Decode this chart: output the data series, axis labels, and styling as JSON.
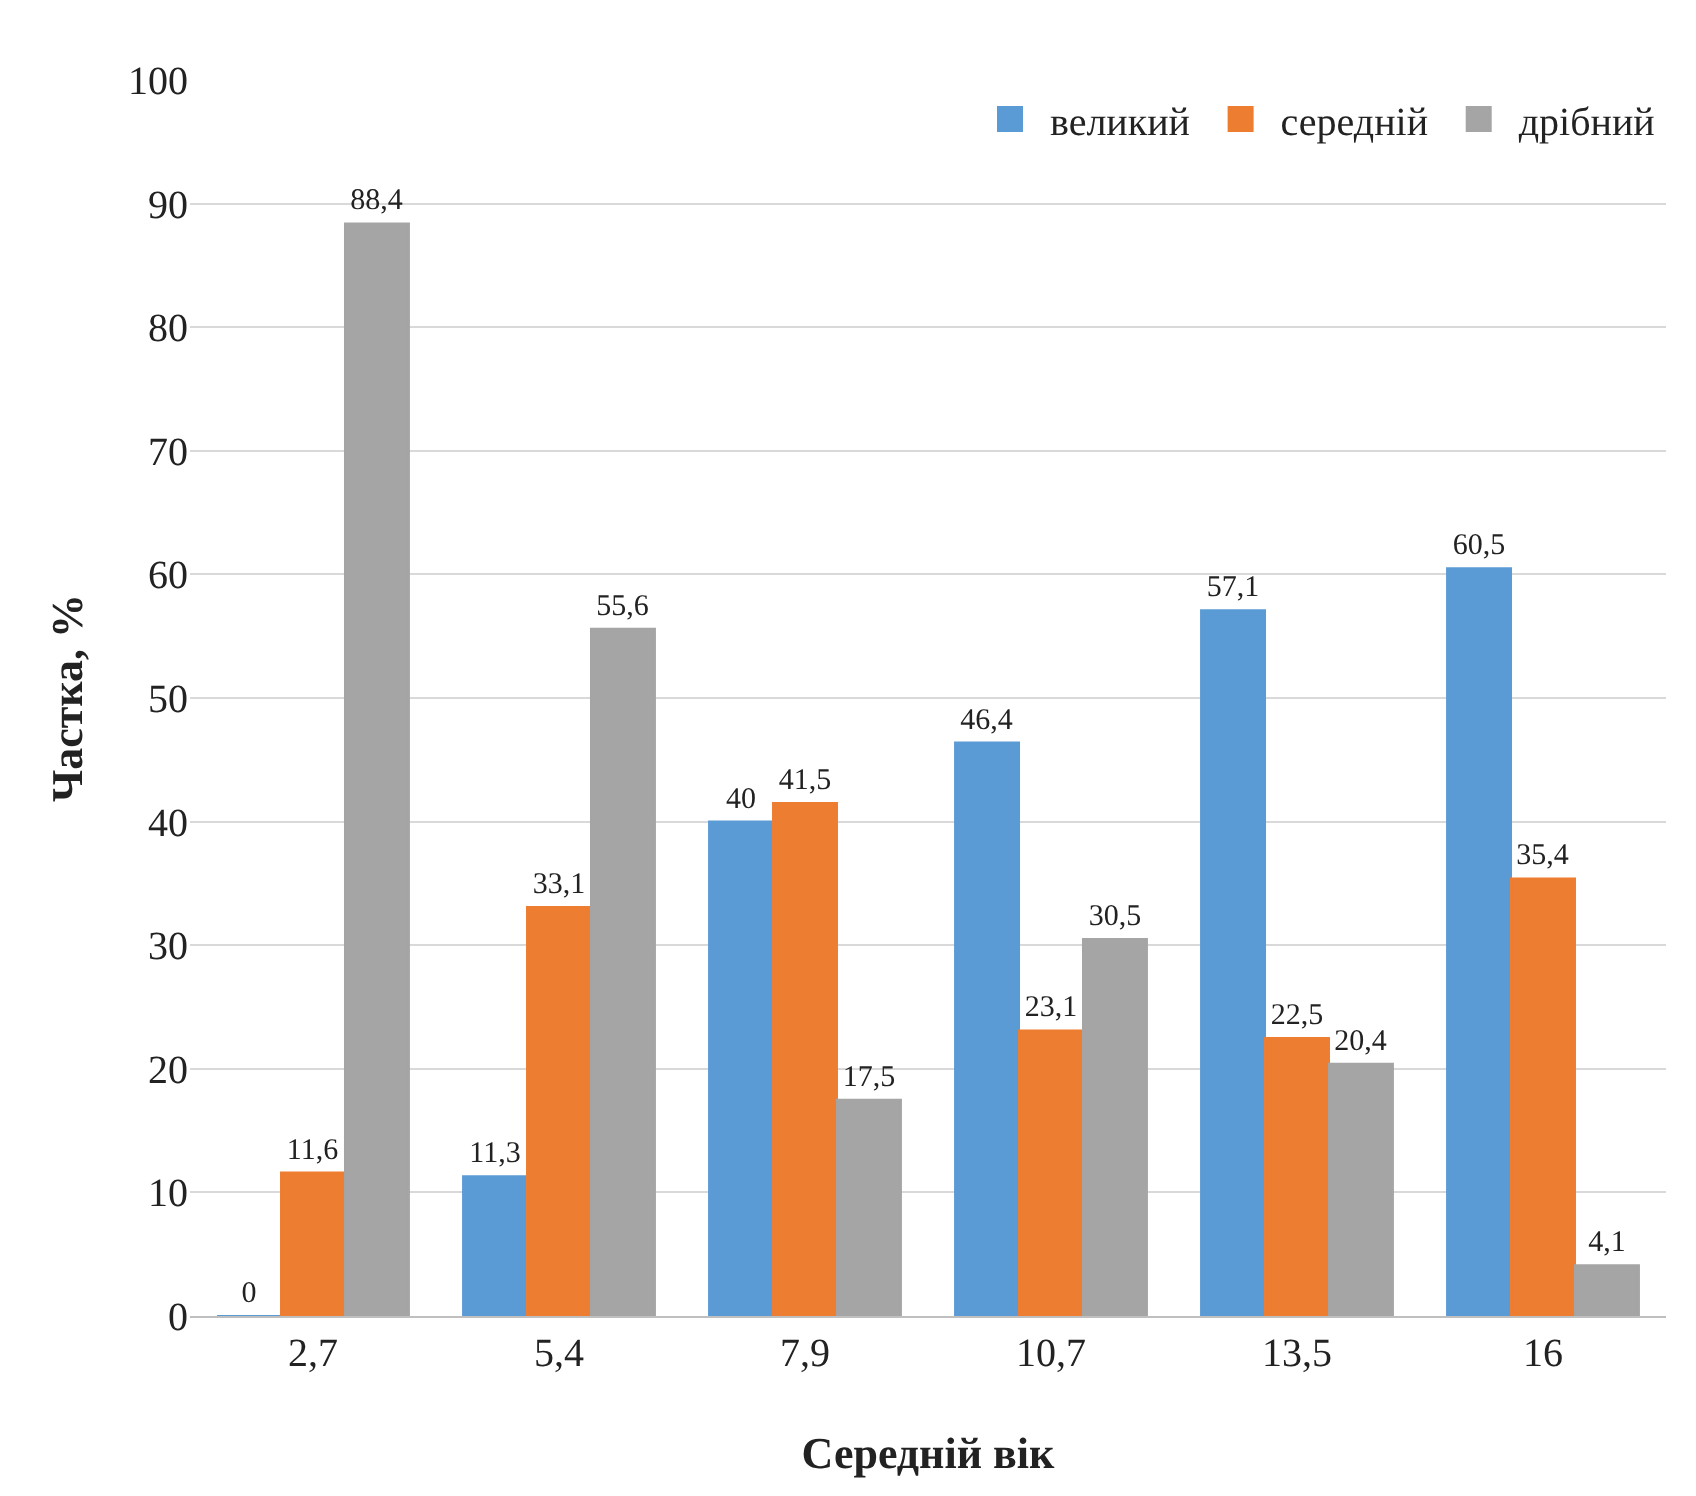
{
  "chart_data": {
    "type": "bar",
    "xlabel": "Середній вік",
    "ylabel": "Частка, %",
    "categories": [
      "2,7",
      "5,4",
      "7,9",
      "10,7",
      "13,5",
      "16"
    ],
    "series": [
      {
        "name": "великий",
        "color": "#5b9bd5",
        "values": [
          0,
          11.3,
          40,
          46.4,
          57.1,
          60.5
        ],
        "value_labels": [
          "0",
          "11,3",
          "40",
          "46,4",
          "57,1",
          "60,5"
        ]
      },
      {
        "name": "середній",
        "color": "#ed7d31",
        "values": [
          11.6,
          33.1,
          41.5,
          23.1,
          22.5,
          35.4
        ],
        "value_labels": [
          "11,6",
          "33,1",
          "41,5",
          "23,1",
          "22,5",
          "35,4"
        ]
      },
      {
        "name": "дрібний",
        "color": "#a5a5a5",
        "values": [
          88.4,
          55.6,
          17.5,
          30.5,
          20.4,
          4.1
        ],
        "value_labels": [
          "88,4",
          "55,6",
          "17,5",
          "30,5",
          "20,4",
          "4,1"
        ]
      }
    ],
    "ylim": [
      0,
      100
    ],
    "yticks": [
      0,
      10,
      20,
      30,
      40,
      50,
      60,
      70,
      80,
      90,
      100
    ],
    "grid": "y",
    "legend": "top right"
  }
}
